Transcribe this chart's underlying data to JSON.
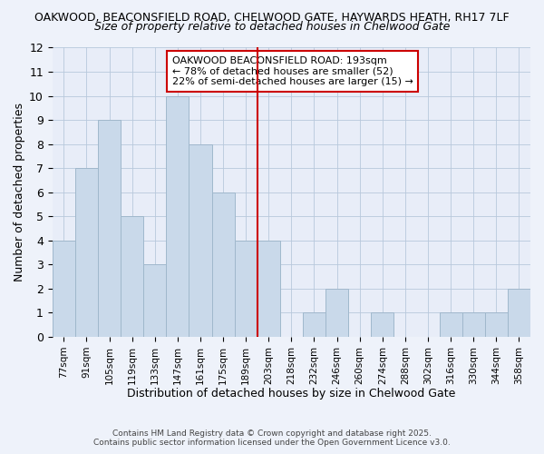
{
  "title_line1": "OAKWOOD, BEACONSFIELD ROAD, CHELWOOD GATE, HAYWARDS HEATH, RH17 7LF",
  "title_line2": "Size of property relative to detached houses in Chelwood Gate",
  "xlabel": "Distribution of detached houses by size in Chelwood Gate",
  "ylabel": "Number of detached properties",
  "bins": [
    "77sqm",
    "91sqm",
    "105sqm",
    "119sqm",
    "133sqm",
    "147sqm",
    "161sqm",
    "175sqm",
    "189sqm",
    "203sqm",
    "218sqm",
    "232sqm",
    "246sqm",
    "260sqm",
    "274sqm",
    "288sqm",
    "302sqm",
    "316sqm",
    "330sqm",
    "344sqm",
    "358sqm"
  ],
  "counts": [
    4,
    7,
    9,
    5,
    3,
    10,
    8,
    6,
    4,
    4,
    0,
    1,
    2,
    0,
    1,
    0,
    0,
    1,
    1,
    1,
    2
  ],
  "bar_color": "#c9d9ea",
  "bar_edge_color": "#a0b8cc",
  "vline_x_index": 8.5,
  "vline_color": "#cc0000",
  "annotation_title": "OAKWOOD BEACONSFIELD ROAD: 193sqm",
  "annotation_line1": "← 78% of detached houses are smaller (52)",
  "annotation_line2": "22% of semi-detached houses are larger (15) →",
  "ylim": [
    0,
    12
  ],
  "yticks": [
    0,
    1,
    2,
    3,
    4,
    5,
    6,
    7,
    8,
    9,
    10,
    11,
    12
  ],
  "footer_line1": "Contains HM Land Registry data © Crown copyright and database right 2025.",
  "footer_line2": "Contains public sector information licensed under the Open Government Licence v3.0.",
  "bg_color": "#eef2fa",
  "plot_bg_color": "#e8edf8",
  "grid_color": "#b8c8dc"
}
